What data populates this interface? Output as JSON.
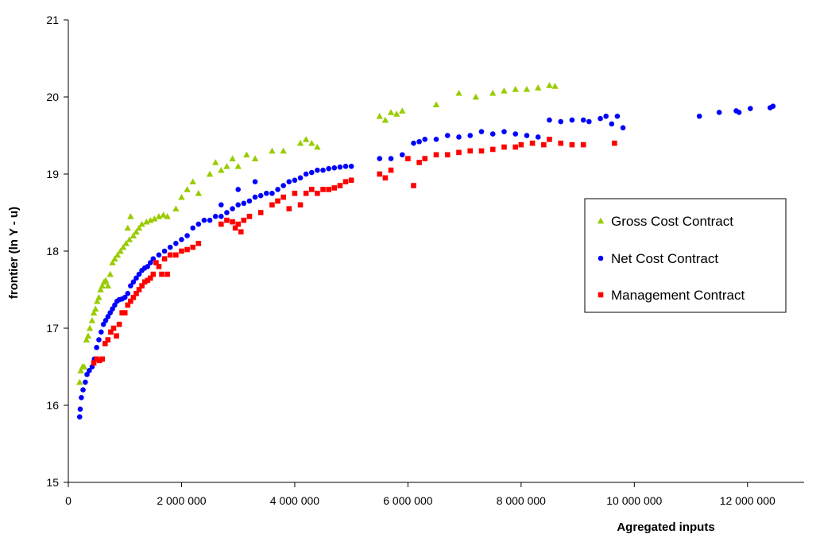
{
  "chart_data": {
    "type": "scatter",
    "xlabel": "Agregated inputs",
    "ylabel": "frontier (ln Y - u)",
    "xlim": [
      0,
      13000000
    ],
    "ylim": [
      15,
      21
    ],
    "x_ticks": [
      0,
      2000000,
      4000000,
      6000000,
      8000000,
      10000000,
      12000000
    ],
    "x_tick_labels": [
      "0",
      "2 000 000",
      "4 000 000",
      "6 000 000",
      "8 000 000",
      "10 000 000",
      "12 000 000"
    ],
    "y_ticks": [
      15,
      16,
      17,
      18,
      19,
      20,
      21
    ],
    "y_tick_labels": [
      "15",
      "16",
      "17",
      "18",
      "19",
      "20",
      "21"
    ],
    "grid": false,
    "legend_position": "right",
    "series": [
      {
        "name": "Gross Cost Contract",
        "color": "#99CC00",
        "marker": "triangle",
        "points": [
          [
            200000,
            16.3
          ],
          [
            220000,
            16.45
          ],
          [
            250000,
            16.5
          ],
          [
            280000,
            16.5
          ],
          [
            320000,
            16.85
          ],
          [
            350000,
            16.9
          ],
          [
            380000,
            17.0
          ],
          [
            420000,
            17.1
          ],
          [
            450000,
            17.2
          ],
          [
            480000,
            17.25
          ],
          [
            510000,
            17.35
          ],
          [
            540000,
            17.4
          ],
          [
            570000,
            17.5
          ],
          [
            600000,
            17.55
          ],
          [
            630000,
            17.6
          ],
          [
            660000,
            17.62
          ],
          [
            700000,
            17.55
          ],
          [
            740000,
            17.7
          ],
          [
            780000,
            17.85
          ],
          [
            820000,
            17.9
          ],
          [
            870000,
            17.95
          ],
          [
            920000,
            18.0
          ],
          [
            970000,
            18.05
          ],
          [
            1020000,
            18.1
          ],
          [
            1080000,
            18.15
          ],
          [
            1150000,
            18.2
          ],
          [
            1200000,
            18.25
          ],
          [
            1250000,
            18.3
          ],
          [
            1300000,
            18.35
          ],
          [
            1380000,
            18.38
          ],
          [
            1450000,
            18.4
          ],
          [
            1520000,
            18.42
          ],
          [
            1600000,
            18.45
          ],
          [
            1680000,
            18.47
          ],
          [
            1750000,
            18.45
          ],
          [
            1100000,
            18.45
          ],
          [
            1050000,
            18.3
          ],
          [
            1900000,
            18.55
          ],
          [
            2000000,
            18.7
          ],
          [
            2100000,
            18.8
          ],
          [
            2200000,
            18.9
          ],
          [
            2300000,
            18.75
          ],
          [
            2500000,
            19.0
          ],
          [
            2600000,
            19.15
          ],
          [
            2700000,
            19.05
          ],
          [
            2800000,
            19.1
          ],
          [
            2900000,
            19.2
          ],
          [
            3000000,
            19.1
          ],
          [
            3150000,
            19.25
          ],
          [
            3300000,
            19.2
          ],
          [
            3600000,
            19.3
          ],
          [
            3800000,
            19.3
          ],
          [
            4100000,
            19.4
          ],
          [
            4200000,
            19.45
          ],
          [
            4300000,
            19.4
          ],
          [
            4400000,
            19.35
          ],
          [
            5500000,
            19.75
          ],
          [
            5600000,
            19.7
          ],
          [
            5700000,
            19.8
          ],
          [
            5800000,
            19.78
          ],
          [
            5900000,
            19.82
          ],
          [
            6500000,
            19.9
          ],
          [
            6900000,
            20.05
          ],
          [
            7200000,
            20.0
          ],
          [
            7500000,
            20.05
          ],
          [
            7700000,
            20.08
          ],
          [
            7900000,
            20.1
          ],
          [
            8100000,
            20.1
          ],
          [
            8300000,
            20.12
          ],
          [
            8500000,
            20.15
          ],
          [
            8600000,
            20.14
          ]
        ]
      },
      {
        "name": "Net Cost Contract",
        "color": "#0000FF",
        "marker": "circle",
        "points": [
          [
            200000,
            15.85
          ],
          [
            210000,
            15.95
          ],
          [
            230000,
            16.1
          ],
          [
            260000,
            16.2
          ],
          [
            300000,
            16.3
          ],
          [
            330000,
            16.4
          ],
          [
            370000,
            16.45
          ],
          [
            420000,
            16.5
          ],
          [
            460000,
            16.6
          ],
          [
            500000,
            16.75
          ],
          [
            540000,
            16.85
          ],
          [
            580000,
            16.95
          ],
          [
            620000,
            17.05
          ],
          [
            660000,
            17.1
          ],
          [
            700000,
            17.15
          ],
          [
            740000,
            17.2
          ],
          [
            780000,
            17.25
          ],
          [
            820000,
            17.3
          ],
          [
            860000,
            17.35
          ],
          [
            900000,
            17.37
          ],
          [
            950000,
            17.38
          ],
          [
            1000000,
            17.4
          ],
          [
            1050000,
            17.45
          ],
          [
            1100000,
            17.55
          ],
          [
            1150000,
            17.6
          ],
          [
            1200000,
            17.65
          ],
          [
            1250000,
            17.7
          ],
          [
            1300000,
            17.75
          ],
          [
            1350000,
            17.78
          ],
          [
            1400000,
            17.8
          ],
          [
            1450000,
            17.85
          ],
          [
            1500000,
            17.9
          ],
          [
            1600000,
            17.95
          ],
          [
            1700000,
            18.0
          ],
          [
            1800000,
            18.05
          ],
          [
            1900000,
            18.1
          ],
          [
            2000000,
            18.15
          ],
          [
            2100000,
            18.2
          ],
          [
            2200000,
            18.3
          ],
          [
            2300000,
            18.35
          ],
          [
            2400000,
            18.4
          ],
          [
            2500000,
            18.4
          ],
          [
            2600000,
            18.45
          ],
          [
            2700000,
            18.45
          ],
          [
            2800000,
            18.5
          ],
          [
            2900000,
            18.55
          ],
          [
            3000000,
            18.6
          ],
          [
            3100000,
            18.62
          ],
          [
            3200000,
            18.65
          ],
          [
            3300000,
            18.7
          ],
          [
            3400000,
            18.72
          ],
          [
            3500000,
            18.75
          ],
          [
            3600000,
            18.75
          ],
          [
            3700000,
            18.8
          ],
          [
            3800000,
            18.85
          ],
          [
            3900000,
            18.9
          ],
          [
            4000000,
            18.92
          ],
          [
            4100000,
            18.95
          ],
          [
            4200000,
            19.0
          ],
          [
            4300000,
            19.02
          ],
          [
            4400000,
            19.05
          ],
          [
            4500000,
            19.05
          ],
          [
            4600000,
            19.07
          ],
          [
            4700000,
            19.08
          ],
          [
            4800000,
            19.09
          ],
          [
            4900000,
            19.1
          ],
          [
            5000000,
            19.1
          ],
          [
            3300000,
            18.9
          ],
          [
            3000000,
            18.8
          ],
          [
            2700000,
            18.6
          ],
          [
            5500000,
            19.2
          ],
          [
            5700000,
            19.2
          ],
          [
            5900000,
            19.25
          ],
          [
            6100000,
            19.4
          ],
          [
            6200000,
            19.42
          ],
          [
            6300000,
            19.45
          ],
          [
            6500000,
            19.45
          ],
          [
            6700000,
            19.5
          ],
          [
            6900000,
            19.48
          ],
          [
            7100000,
            19.5
          ],
          [
            7300000,
            19.55
          ],
          [
            7500000,
            19.52
          ],
          [
            7700000,
            19.55
          ],
          [
            7900000,
            19.52
          ],
          [
            8100000,
            19.5
          ],
          [
            8300000,
            19.48
          ],
          [
            8500000,
            19.7
          ],
          [
            8700000,
            19.68
          ],
          [
            8900000,
            19.7
          ],
          [
            9100000,
            19.7
          ],
          [
            9200000,
            19.68
          ],
          [
            9400000,
            19.72
          ],
          [
            9500000,
            19.75
          ],
          [
            9600000,
            19.65
          ],
          [
            9700000,
            19.75
          ],
          [
            9800000,
            19.6
          ],
          [
            11150000,
            19.75
          ],
          [
            11500000,
            19.8
          ],
          [
            11800000,
            19.82
          ],
          [
            11850000,
            19.8
          ],
          [
            12050000,
            19.85
          ],
          [
            12400000,
            19.86
          ],
          [
            12450000,
            19.88
          ]
        ]
      },
      {
        "name": "Management Contract",
        "color": "#FF0000",
        "marker": "square",
        "points": [
          [
            450000,
            16.55
          ],
          [
            500000,
            16.6
          ],
          [
            550000,
            16.58
          ],
          [
            600000,
            16.6
          ],
          [
            650000,
            16.8
          ],
          [
            700000,
            16.85
          ],
          [
            750000,
            16.95
          ],
          [
            800000,
            17.0
          ],
          [
            850000,
            16.9
          ],
          [
            900000,
            17.05
          ],
          [
            950000,
            17.2
          ],
          [
            1000000,
            17.2
          ],
          [
            1050000,
            17.3
          ],
          [
            1100000,
            17.35
          ],
          [
            1150000,
            17.4
          ],
          [
            1200000,
            17.45
          ],
          [
            1250000,
            17.5
          ],
          [
            1300000,
            17.55
          ],
          [
            1350000,
            17.6
          ],
          [
            1400000,
            17.62
          ],
          [
            1450000,
            17.65
          ],
          [
            1500000,
            17.7
          ],
          [
            1600000,
            17.8
          ],
          [
            1700000,
            17.9
          ],
          [
            1800000,
            17.95
          ],
          [
            1900000,
            17.95
          ],
          [
            2000000,
            18.0
          ],
          [
            2100000,
            18.02
          ],
          [
            2200000,
            18.05
          ],
          [
            2300000,
            18.1
          ],
          [
            1550000,
            17.85
          ],
          [
            1650000,
            17.7
          ],
          [
            1750000,
            17.7
          ],
          [
            2700000,
            18.35
          ],
          [
            2800000,
            18.4
          ],
          [
            2900000,
            18.38
          ],
          [
            2950000,
            18.3
          ],
          [
            3000000,
            18.35
          ],
          [
            3050000,
            18.25
          ],
          [
            3100000,
            18.4
          ],
          [
            3200000,
            18.45
          ],
          [
            3400000,
            18.5
          ],
          [
            3600000,
            18.6
          ],
          [
            3700000,
            18.65
          ],
          [
            3800000,
            18.7
          ],
          [
            3900000,
            18.55
          ],
          [
            4000000,
            18.75
          ],
          [
            4100000,
            18.6
          ],
          [
            4200000,
            18.75
          ],
          [
            4300000,
            18.8
          ],
          [
            4400000,
            18.75
          ],
          [
            4500000,
            18.8
          ],
          [
            4600000,
            18.8
          ],
          [
            4700000,
            18.82
          ],
          [
            4800000,
            18.85
          ],
          [
            4900000,
            18.9
          ],
          [
            5000000,
            18.92
          ],
          [
            5500000,
            19.0
          ],
          [
            5600000,
            18.95
          ],
          [
            5700000,
            19.05
          ],
          [
            6000000,
            19.2
          ],
          [
            6100000,
            18.85
          ],
          [
            6200000,
            19.15
          ],
          [
            6300000,
            19.2
          ],
          [
            6500000,
            19.25
          ],
          [
            6700000,
            19.25
          ],
          [
            6900000,
            19.28
          ],
          [
            7100000,
            19.3
          ],
          [
            7300000,
            19.3
          ],
          [
            7500000,
            19.32
          ],
          [
            7700000,
            19.35
          ],
          [
            7900000,
            19.35
          ],
          [
            8000000,
            19.38
          ],
          [
            8200000,
            19.4
          ],
          [
            8400000,
            19.38
          ],
          [
            8500000,
            19.45
          ],
          [
            8700000,
            19.4
          ],
          [
            8900000,
            19.38
          ],
          [
            9100000,
            19.38
          ],
          [
            9650000,
            19.4
          ]
        ]
      }
    ]
  }
}
